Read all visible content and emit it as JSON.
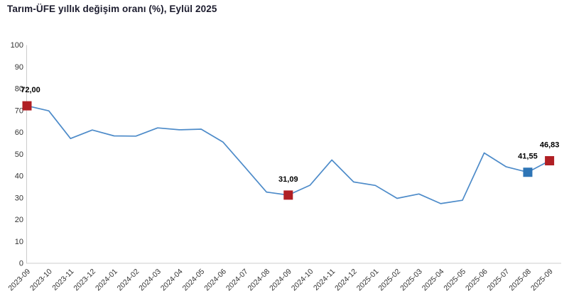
{
  "title": "Tarım-ÜFE yıllık değişim oranı (%), Eylül 2025",
  "colors": {
    "line": "#4d8bc9",
    "marker_red": "#b01f24",
    "marker_blue": "#2e75b6",
    "axis": "#cccccc",
    "tick_text": "#333333",
    "title_text": "#1c1c2e",
    "label_text": "#000000"
  },
  "chart_data": {
    "type": "line",
    "title": "Tarım-ÜFE yıllık değişim oranı (%), Eylül 2025",
    "x": [
      "2023-09",
      "2023-10",
      "2023-11",
      "2023-12",
      "2024-01",
      "2024-02",
      "2024-03",
      "2024-04",
      "2024-05",
      "2024-06",
      "2024-07",
      "2024-08",
      "2024-09",
      "2024-10",
      "2024-11",
      "2024-12",
      "2025-01",
      "2025-02",
      "2025-03",
      "2025-04",
      "2025-05",
      "2025-06",
      "2025-07",
      "2025-08",
      "2025-09"
    ],
    "values": [
      72.0,
      69.7,
      57.0,
      60.9,
      58.2,
      58.1,
      61.9,
      61.0,
      61.3,
      55.4,
      44.0,
      32.5,
      31.09,
      35.6,
      47.2,
      37.1,
      35.5,
      29.6,
      31.6,
      27.2,
      28.7,
      50.4,
      44.1,
      41.55,
      46.83
    ],
    "ylim": [
      0,
      100
    ],
    "y_ticks": [
      0,
      10,
      20,
      30,
      40,
      50,
      60,
      70,
      80,
      90,
      100
    ],
    "grid": false,
    "legend": false,
    "xlabel": "",
    "ylabel": "",
    "x_label_rotation": -45,
    "annotations": [
      {
        "x": "2023-09",
        "value": 72.0,
        "label": "72,00",
        "marker": "square",
        "color": "#b01f24",
        "label_dx": 5
      },
      {
        "x": "2024-09",
        "value": 31.09,
        "label": "31,09",
        "marker": "square",
        "color": "#b01f24",
        "label_dx": 0
      },
      {
        "x": "2025-08",
        "value": 41.55,
        "label": "41,55",
        "marker": "square",
        "color": "#2e75b6",
        "label_dx": 0
      },
      {
        "x": "2025-09",
        "value": 46.83,
        "label": "46,83",
        "marker": "square",
        "color": "#b01f24",
        "label_dx": 0
      }
    ]
  }
}
